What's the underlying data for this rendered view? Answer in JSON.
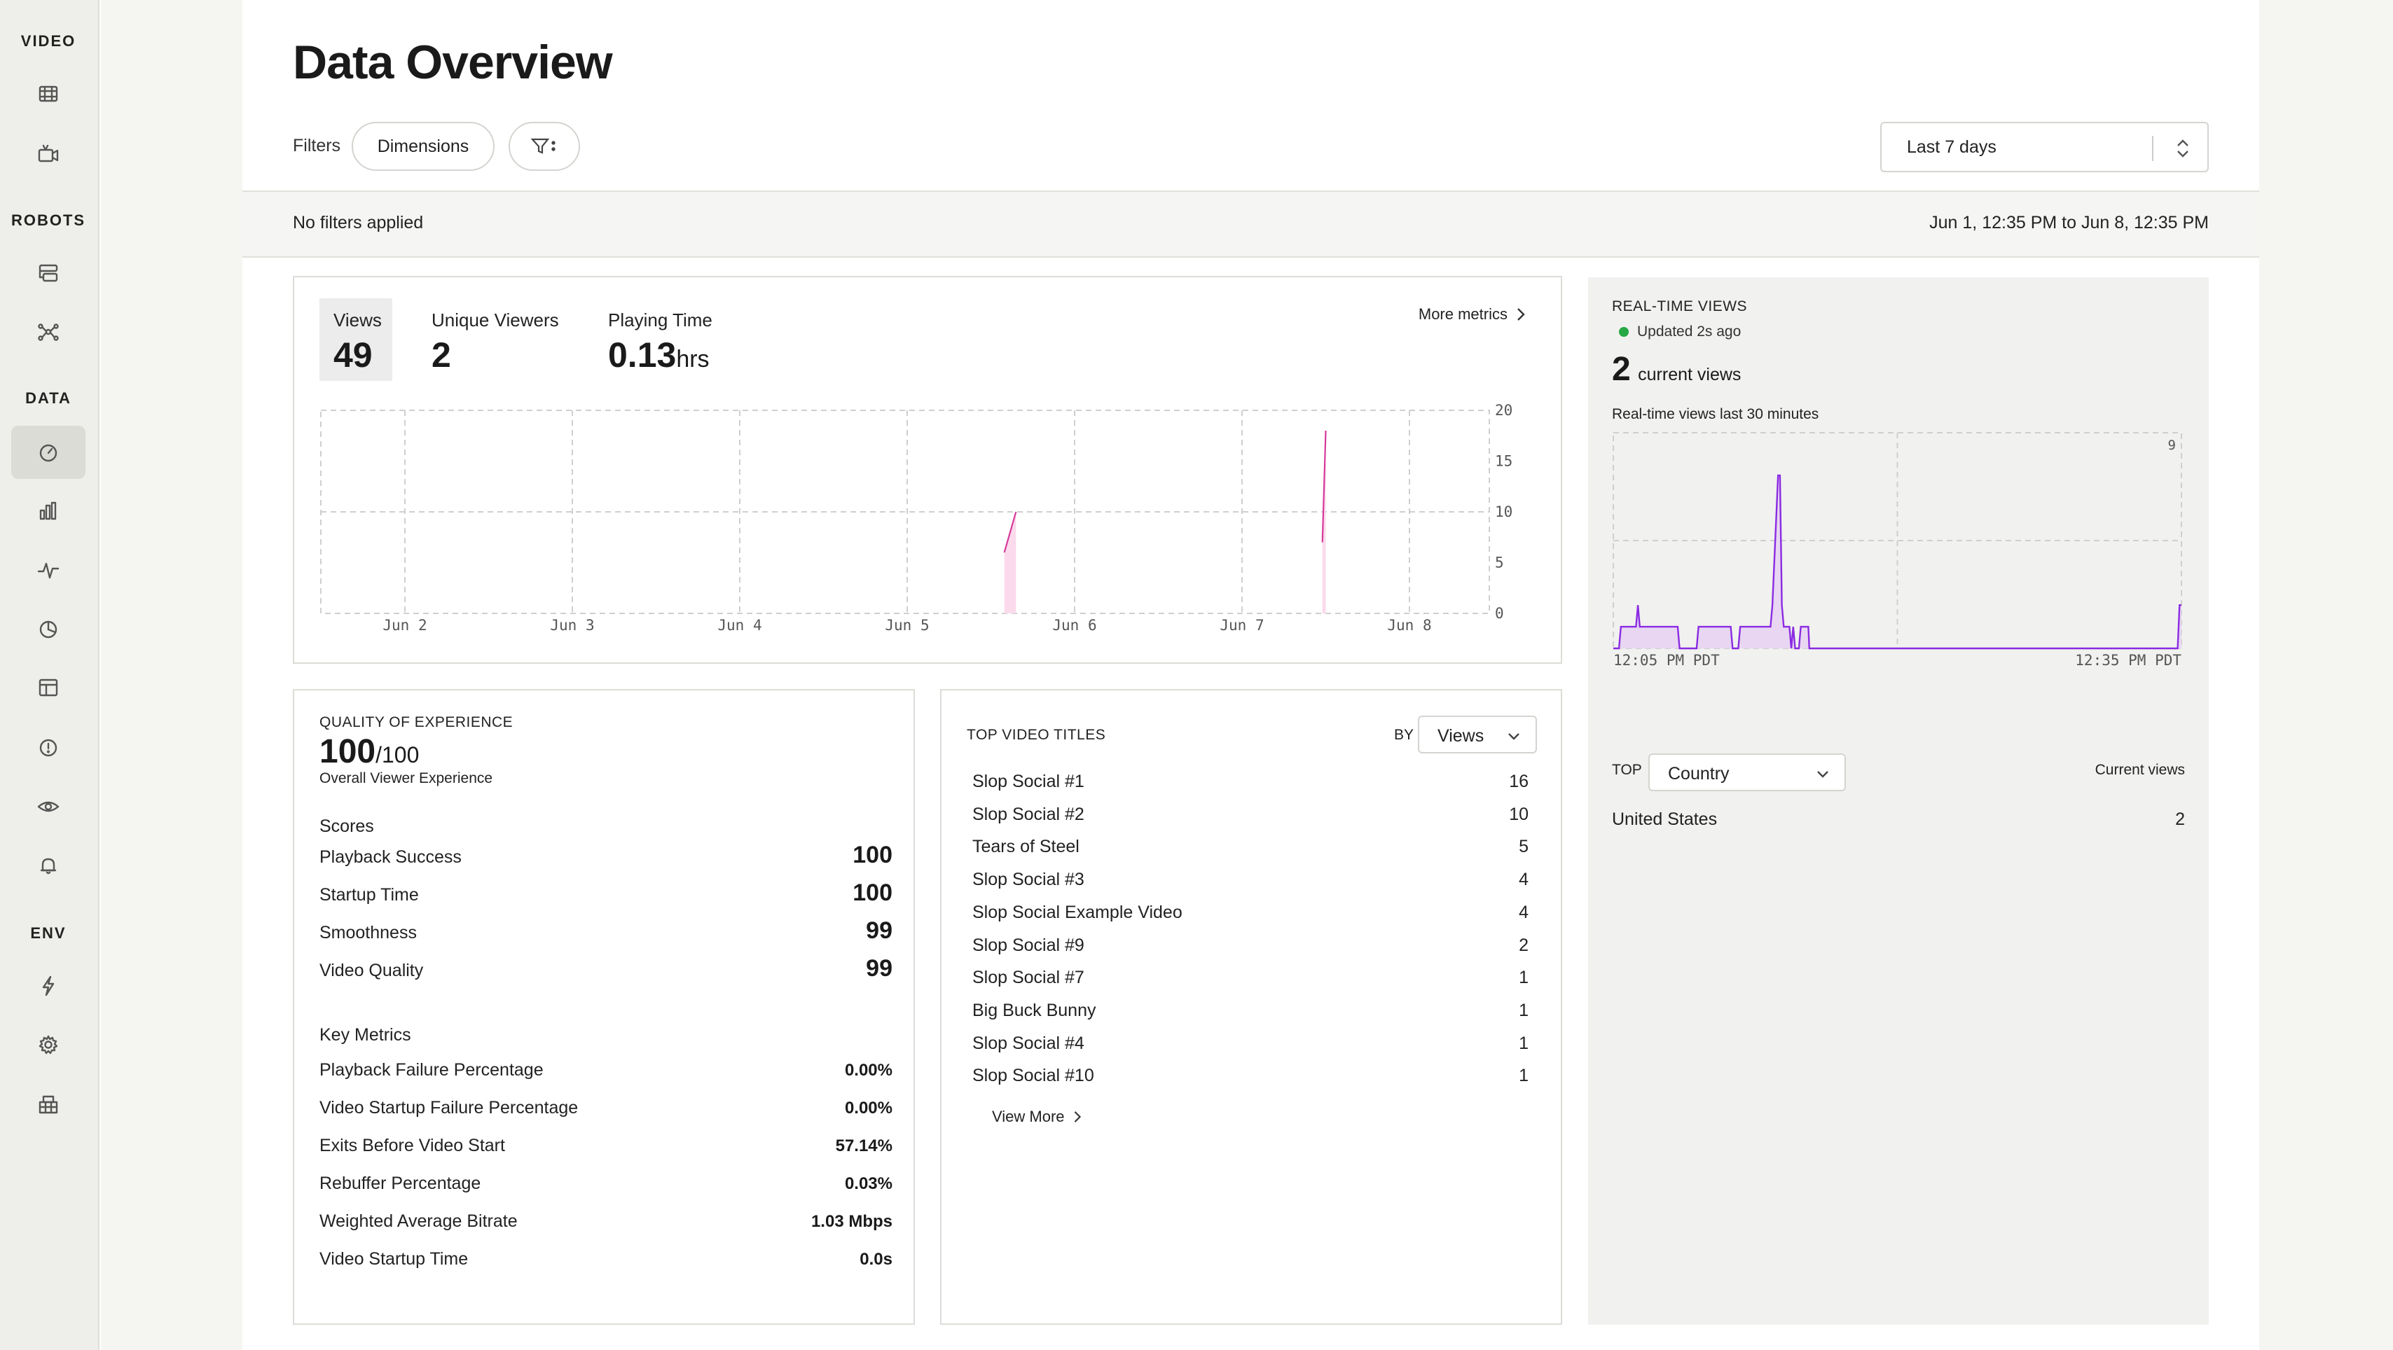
{
  "sidebar": {
    "sections": [
      {
        "title": "VIDEO"
      },
      {
        "title": "ROBOTS"
      },
      {
        "title": "DATA"
      },
      {
        "title": "ENV"
      }
    ],
    "icons": [
      "film-icon",
      "camera-icon",
      "board-icon",
      "nodes-icon",
      "gauge-icon",
      "bar-chart-icon",
      "pulse-icon",
      "pie-icon",
      "table-icon",
      "info-icon",
      "eye-icon",
      "bell-icon",
      "bolt-icon",
      "gear-icon",
      "grid-icon"
    ]
  },
  "header": {
    "title": "Data Overview",
    "filters_label": "Filters",
    "dimensions_label": "Dimensions",
    "range_label": "Last 7 days"
  },
  "filter_bar": {
    "status": "No filters applied",
    "date_range": "Jun 1, 12:35 PM to Jun 8, 12:35 PM"
  },
  "metrics": {
    "views_label": "Views",
    "views_value": "49",
    "unique_label": "Unique Viewers",
    "unique_value": "2",
    "playing_label": "Playing Time",
    "playing_value": "0.13",
    "playing_unit": "hrs",
    "more_label": "More metrics"
  },
  "colors": {
    "views_line": "#d63a9a",
    "views_fill": "#fbdaec",
    "rt_line": "#8a2be2",
    "rt_fill": "#e8d6f2",
    "live_dot": "#27a844"
  },
  "chart_data": [
    {
      "type": "line",
      "x_ticks": [
        "Jun 2",
        "Jun 3",
        "Jun 4",
        "Jun 5",
        "Jun 6",
        "Jun 7",
        "Jun 8"
      ],
      "y_ticks": [
        "20",
        "15",
        "10",
        "5",
        "0"
      ],
      "ylim": [
        0,
        20
      ],
      "grid": true,
      "series": [
        {
          "values": [
            [
              4.58,
              6
            ],
            [
              4.65,
              10
            ]
          ]
        },
        {
          "values": [
            [
              6.48,
              7
            ],
            [
              6.5,
              18
            ]
          ]
        }
      ]
    },
    {
      "type": "area",
      "title": "Real-time views last 30 minutes",
      "x_ticks": [
        "12:05 PM PDT",
        "12:35 PM PDT"
      ],
      "y_tick": "9",
      "ylim": [
        0,
        9
      ],
      "xlim": [
        0,
        30
      ],
      "grid": true,
      "series": [
        {
          "values": [
            [
              0,
              0
            ],
            [
              0.3,
              0
            ],
            [
              0.4,
              1
            ],
            [
              1.2,
              1
            ],
            [
              1.3,
              2
            ],
            [
              1.4,
              1
            ],
            [
              3.4,
              1
            ],
            [
              3.5,
              0
            ],
            [
              4.4,
              0
            ],
            [
              4.5,
              1
            ],
            [
              6.2,
              1
            ],
            [
              6.3,
              0
            ],
            [
              6.6,
              0
            ],
            [
              6.7,
              1
            ],
            [
              8.3,
              1
            ],
            [
              8.4,
              2
            ],
            [
              8.7,
              8
            ],
            [
              8.8,
              8
            ],
            [
              8.9,
              2
            ],
            [
              9.0,
              1
            ],
            [
              9.3,
              1
            ],
            [
              9.4,
              0
            ],
            [
              9.5,
              1
            ],
            [
              9.6,
              0
            ],
            [
              9.8,
              0
            ],
            [
              9.9,
              1
            ],
            [
              10.3,
              1
            ],
            [
              10.35,
              0
            ],
            [
              29.8,
              0
            ],
            [
              29.9,
              2
            ],
            [
              30,
              2
            ]
          ]
        }
      ]
    }
  ],
  "qoe": {
    "caption": "QUALITY OF EXPERIENCE",
    "score": "100",
    "score_max": "/100",
    "subtitle": "Overall Viewer Experience",
    "scores_heading": "Scores",
    "scores": [
      {
        "label": "Playback Success",
        "value": "100"
      },
      {
        "label": "Startup Time",
        "value": "100"
      },
      {
        "label": "Smoothness",
        "value": "99"
      },
      {
        "label": "Video Quality",
        "value": "99"
      }
    ],
    "metrics_heading": "Key Metrics",
    "key_metrics": [
      {
        "label": "Playback Failure Percentage",
        "value": "0.00%"
      },
      {
        "label": "Video Startup Failure Percentage",
        "value": "0.00%"
      },
      {
        "label": "Exits Before Video Start",
        "value": "57.14%"
      },
      {
        "label": "Rebuffer Percentage",
        "value": "0.03%"
      },
      {
        "label": "Weighted Average Bitrate",
        "value": "1.03 Mbps"
      },
      {
        "label": "Video Startup Time",
        "value": "0.0s"
      }
    ]
  },
  "top_titles": {
    "caption": "TOP VIDEO TITLES",
    "by_label": "BY",
    "by_value": "Views",
    "rows": [
      {
        "title": "Slop Social #1",
        "count": "16"
      },
      {
        "title": "Slop Social #2",
        "count": "10"
      },
      {
        "title": "Tears of Steel",
        "count": "5"
      },
      {
        "title": "Slop Social #3",
        "count": "4"
      },
      {
        "title": "Slop Social Example Video",
        "count": "4"
      },
      {
        "title": "Slop Social #9",
        "count": "2"
      },
      {
        "title": "Slop Social #7",
        "count": "1"
      },
      {
        "title": "Big Buck Bunny",
        "count": "1"
      },
      {
        "title": "Slop Social #4",
        "count": "1"
      },
      {
        "title": "Slop Social #10",
        "count": "1"
      }
    ],
    "view_more": "View More"
  },
  "realtime": {
    "caption": "REAL-TIME VIEWS",
    "updated": "Updated 2s ago",
    "current_value": "2",
    "current_label": "current views",
    "chart_caption": "Real-time views last 30 minutes",
    "top_label": "TOP",
    "top_dimension": "Country",
    "col_label": "Current views",
    "rows": [
      {
        "name": "United States",
        "value": "2"
      }
    ]
  }
}
